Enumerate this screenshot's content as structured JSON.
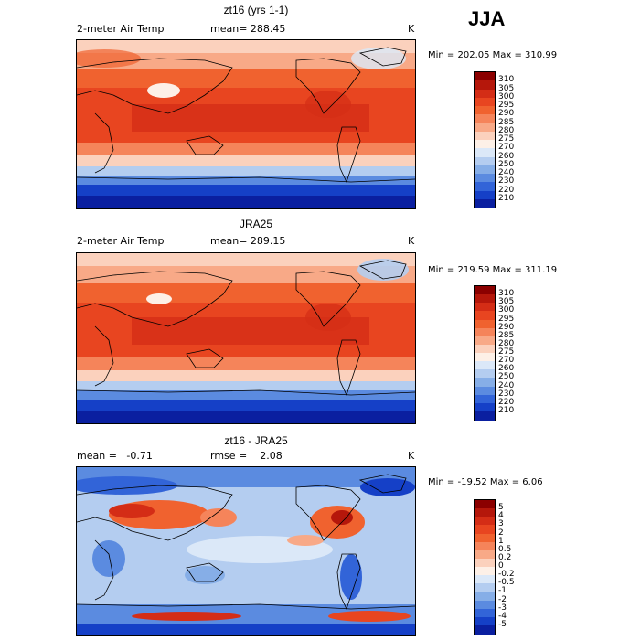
{
  "season": "JJA",
  "panels": [
    {
      "title": "zt16 (yrs 1-1)",
      "left_label": "2-meter Air Temp",
      "center_label": "mean= 288.45",
      "units": "K",
      "minmax": "Min = 202.05 Max = 310.99",
      "colorbar": {
        "labels": [
          "310",
          "305",
          "300",
          "295",
          "290",
          "285",
          "280",
          "275",
          "270",
          "260",
          "250",
          "240",
          "230",
          "220",
          "210"
        ],
        "colors": [
          "#8b0000",
          "#b5170b",
          "#d42d16",
          "#e84520",
          "#f0622f",
          "#f5845a",
          "#f8a987",
          "#fbd1bd",
          "#fdf0e7",
          "#dbe8f8",
          "#b4cdf0",
          "#86aee7",
          "#5b8be0",
          "#3264d8",
          "#1540c7",
          "#0a1fa0"
        ]
      }
    },
    {
      "title": "JRA25",
      "left_label": "2-meter Air Temp",
      "center_label": "mean= 289.15",
      "units": "K",
      "minmax": "Min = 219.59 Max = 311.19",
      "colorbar": {
        "labels": [
          "310",
          "305",
          "300",
          "295",
          "290",
          "285",
          "280",
          "275",
          "270",
          "260",
          "250",
          "240",
          "230",
          "220",
          "210"
        ],
        "colors": [
          "#8b0000",
          "#b5170b",
          "#d42d16",
          "#e84520",
          "#f0622f",
          "#f5845a",
          "#f8a987",
          "#fbd1bd",
          "#fdf0e7",
          "#dbe8f8",
          "#b4cdf0",
          "#86aee7",
          "#5b8be0",
          "#3264d8",
          "#1540c7",
          "#0a1fa0"
        ]
      }
    },
    {
      "title": "zt16 - JRA25",
      "left_label": "mean =   -0.71",
      "center_label": "rmse =    2.08",
      "units": "K",
      "minmax": "Min = -19.52 Max =   6.06",
      "colorbar": {
        "labels": [
          "5",
          "4",
          "3",
          "2",
          "1",
          "0.5",
          "0.2",
          "0",
          "-0.2",
          "-0.5",
          "-1",
          "-2",
          "-3",
          "-4",
          "-5"
        ],
        "colors": [
          "#8b0000",
          "#b5170b",
          "#d42d16",
          "#e84520",
          "#f0622f",
          "#f5845a",
          "#f8a987",
          "#fbd1bd",
          "#fdf0e7",
          "#dbe8f8",
          "#b4cdf0",
          "#86aee7",
          "#5b8be0",
          "#3264d8",
          "#1540c7",
          "#0a1fa0"
        ]
      }
    }
  ]
}
